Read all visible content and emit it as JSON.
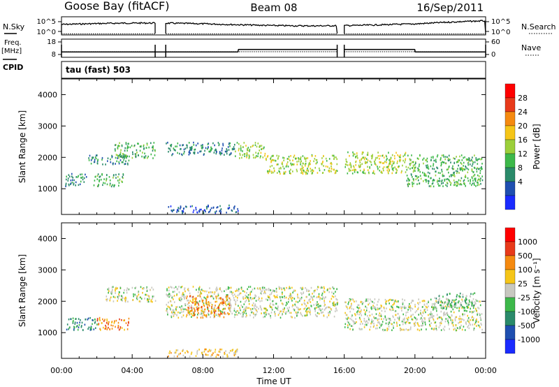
{
  "header": {
    "station": "Goose Bay (fitACF)",
    "beam": "Beam 08",
    "date": "16/Sep/2011"
  },
  "noise_panel": {
    "left_label": "N.Sky",
    "left_ticks": [
      "10^5",
      "10^0"
    ],
    "right_ticks": [
      "10^5",
      "10^0"
    ],
    "right_label": "N.Search"
  },
  "freq_panel": {
    "left_label_1": "Freq.",
    "left_label_2": "[MHz]",
    "left_ticks": [
      "18",
      "8"
    ],
    "right_ticks": [
      "60",
      "0"
    ],
    "right_label": "Nave"
  },
  "cpid": {
    "label": "CPID",
    "mode": "tau (fast) 503"
  },
  "power_panel": {
    "ylabel": "Slant Range [km]",
    "yticks": [
      "4000",
      "3000",
      "2000",
      "1000"
    ],
    "colorbar_label": "Power [dB]",
    "colorbar_ticks": [
      "28",
      "24",
      "20",
      "16",
      "12",
      "8",
      "4"
    ],
    "colors": [
      "#1a2bff",
      "#1f4fb0",
      "#2a8a6a",
      "#3db84a",
      "#9ccf3a",
      "#f5c518",
      "#f58a10",
      "#e83a1a",
      "#ff0000"
    ]
  },
  "velocity_panel": {
    "ylabel": "Slant Range [km]",
    "yticks": [
      "4000",
      "3000",
      "2000",
      "1000"
    ],
    "colorbar_label": "Velocity [m s⁻¹]",
    "colorbar_ticks": [
      "1000",
      "500",
      "100",
      "25",
      "-25",
      "-100",
      "-500",
      "-1000"
    ],
    "colors": [
      "#1a2bff",
      "#1f4fb0",
      "#2a8a6a",
      "#3db84a",
      "#c8c8c0",
      "#f5c518",
      "#f58a10",
      "#e83a1a",
      "#ff0000"
    ],
    "ground_scatter_color": "#c8c8c0"
  },
  "xaxis": {
    "label": "Time UT",
    "ticks": [
      "00:00",
      "04:00",
      "08:00",
      "12:00",
      "16:00",
      "20:00",
      "00:00"
    ]
  },
  "chart_data": {
    "type": "heatmap",
    "title": "Goose Bay (fitACF) Beam 08 16/Sep/2011",
    "xlabel": "Time UT",
    "ylabel": "Slant Range [km]",
    "xlim_hours": [
      0,
      24
    ],
    "ylim_km": [
      180,
      4500
    ],
    "data_gaps_hours": [
      [
        5.3,
        5.9
      ],
      [
        15.6,
        16.0
      ]
    ],
    "frequency_MHz": [
      {
        "start": 0,
        "end": 10,
        "value": 10
      },
      {
        "start": 10,
        "end": 15.6,
        "value": 12
      },
      {
        "start": 16,
        "end": 20,
        "value": 12
      },
      {
        "start": 20,
        "end": 24,
        "value": 10
      }
    ],
    "power_bands": [
      {
        "t0": 0.2,
        "t1": 1.4,
        "r0": 1100,
        "r1": 1500,
        "level": 2
      },
      {
        "t0": 1.8,
        "t1": 3.5,
        "r0": 1100,
        "r1": 1500,
        "level": 3
      },
      {
        "t0": 1.5,
        "t1": 3.8,
        "r0": 1800,
        "r1": 2100,
        "level": 2
      },
      {
        "t0": 3.0,
        "t1": 5.3,
        "r0": 2000,
        "r1": 2500,
        "level": 3
      },
      {
        "t0": 5.9,
        "t1": 9.8,
        "r0": 2100,
        "r1": 2500,
        "level": 2
      },
      {
        "t0": 9.8,
        "t1": 11.5,
        "r0": 2000,
        "r1": 2500,
        "level": 4
      },
      {
        "t0": 11.5,
        "t1": 15.6,
        "r0": 1500,
        "r1": 2100,
        "level": 4
      },
      {
        "t0": 16.0,
        "t1": 19.5,
        "r0": 1500,
        "r1": 2200,
        "level": 4
      },
      {
        "t0": 19.5,
        "t1": 23.8,
        "r0": 1100,
        "r1": 2100,
        "level": 3
      },
      {
        "t0": 6.0,
        "t1": 10.0,
        "r0": 250,
        "r1": 500,
        "level": 1
      }
    ],
    "velocity_bands": [
      {
        "t0": 0.2,
        "t1": 2.0,
        "r0": 1100,
        "r1": 1500,
        "level": 2
      },
      {
        "t0": 2.0,
        "t1": 3.8,
        "r0": 1100,
        "r1": 1500,
        "level": 6
      },
      {
        "t0": 2.5,
        "t1": 5.3,
        "r0": 2000,
        "r1": 2500,
        "level": 4
      },
      {
        "t0": 5.9,
        "t1": 15.6,
        "r0": 1500,
        "r1": 2500,
        "level": 4
      },
      {
        "t0": 7.0,
        "t1": 9.5,
        "r0": 1500,
        "r1": 2200,
        "level": 6
      },
      {
        "t0": 16.0,
        "t1": 23.8,
        "r0": 1100,
        "r1": 2100,
        "level": 4
      },
      {
        "t0": 21.0,
        "t1": 23.5,
        "r0": 1800,
        "r1": 2300,
        "level": 3
      },
      {
        "t0": 6.0,
        "t1": 10.0,
        "r0": 250,
        "r1": 500,
        "level": 5
      }
    ]
  }
}
